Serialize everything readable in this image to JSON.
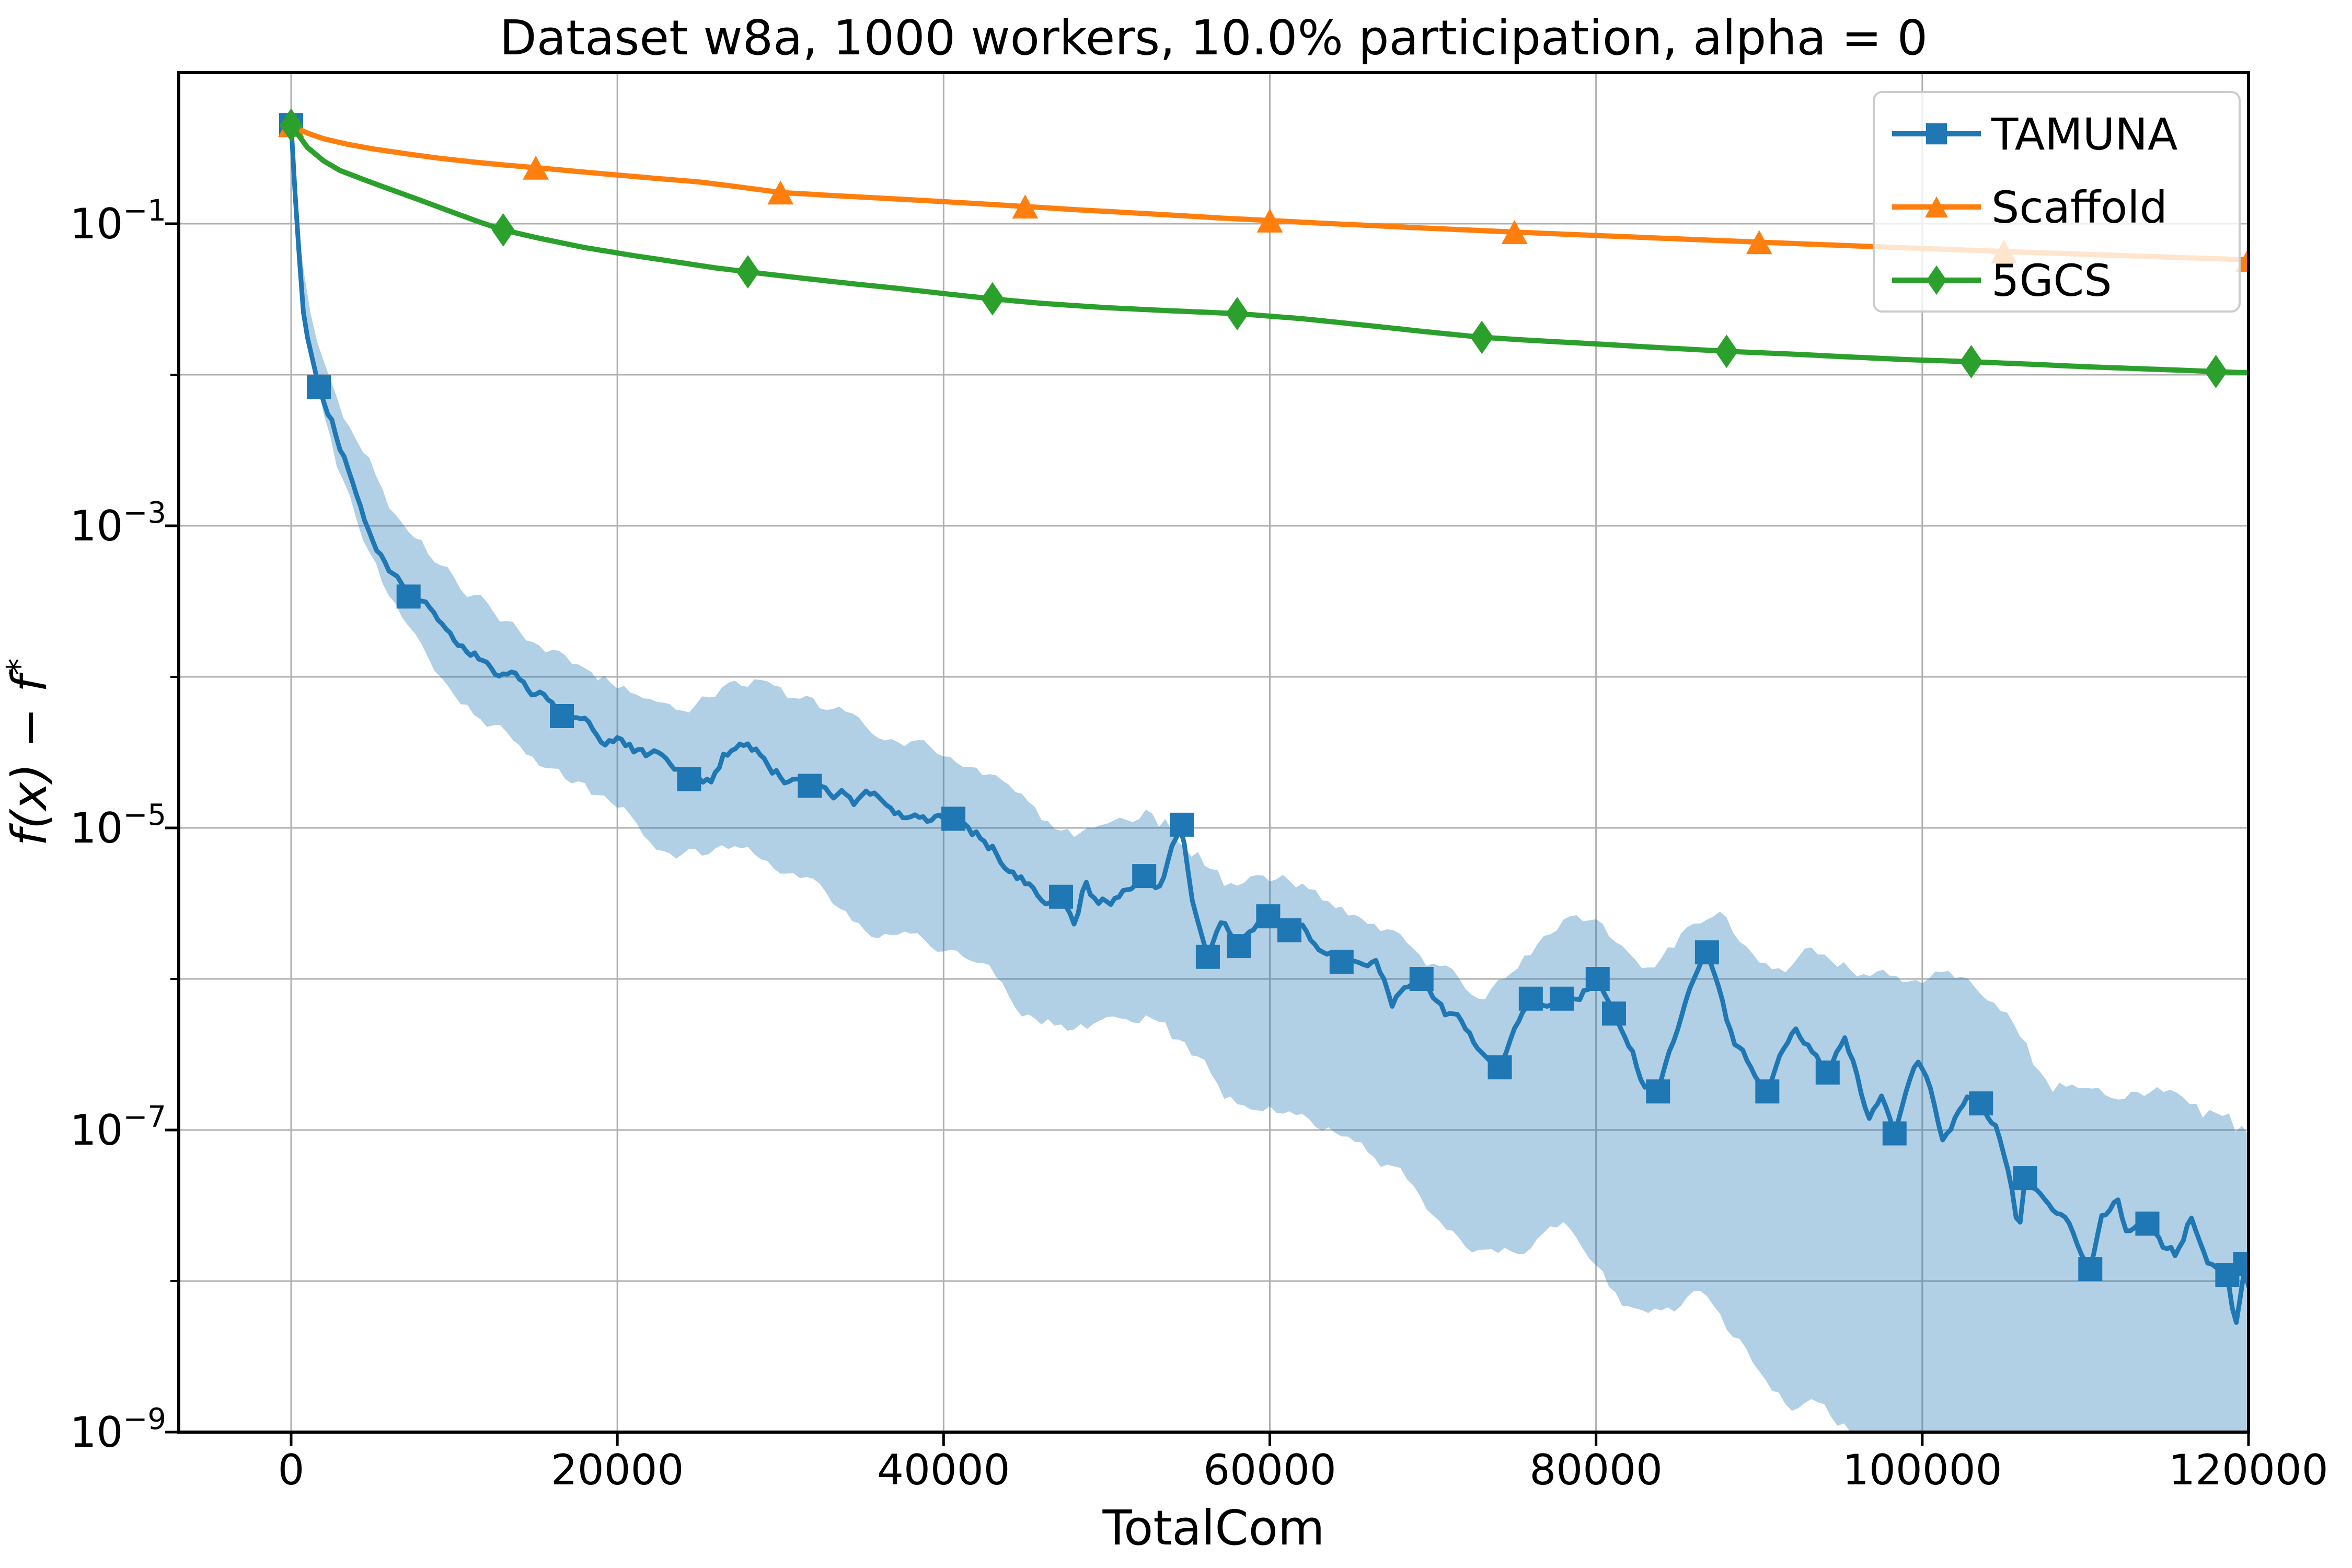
{
  "title": "Dataset w8a, 1000 workers, 10.0% participation, alpha = 0",
  "axes": {
    "xlabel": "TotalCom",
    "ylabel": "f(x) − f*",
    "xticks": [
      0,
      20000,
      40000,
      60000,
      80000,
      100000,
      120000
    ],
    "ytick_exponents_labeled": [
      -1,
      -3,
      -5,
      -7,
      -9
    ],
    "ydecade_exponents": [
      -1,
      -2,
      -3,
      -4,
      -5,
      -6,
      -7,
      -8,
      -9
    ],
    "ylim": [
      1e-09,
      1.0
    ],
    "xlim_right": 120000,
    "grid": true
  },
  "legend": {
    "position": "upper right",
    "entries": [
      {
        "label": "TAMUNA",
        "color": "#1f77b4",
        "marker": "square"
      },
      {
        "label": "Scaffold",
        "color": "#ff7f0e",
        "marker": "triangle"
      },
      {
        "label": "5GCS",
        "color": "#2ca02c",
        "marker": "diamond"
      }
    ]
  },
  "colors": {
    "tamuna": "#1f77b4",
    "scaffold": "#ff7f0e",
    "fgcs": "#2ca02c",
    "band": "#1f77b4",
    "band_opacity": 0.35,
    "grid": "#b0b0b0",
    "spine": "#000000",
    "legend_border": "#cccccc",
    "background": "#ffffff"
  },
  "chart_data": {
    "type": "line",
    "xlabel": "TotalCom",
    "ylabel": "f(x) − f*",
    "yscale": "log",
    "ylim": [
      1e-09,
      1.0
    ],
    "series": [
      {
        "name": "TAMUNA",
        "color": "#1f77b4",
        "marker": "square",
        "noise_seed": 42,
        "markers_x": [
          0,
          1700,
          7200,
          16600,
          24400,
          31800,
          40600,
          47200,
          52300,
          54600,
          56200,
          58100,
          59900,
          61200,
          64400,
          69300,
          74100,
          76000,
          77900,
          80100,
          81100,
          83800,
          86800,
          90500,
          94200,
          98300,
          103600,
          106300,
          110300,
          113800,
          118700,
          119800
        ],
        "markers_y": [
          0.45,
          0.0083,
          0.00034,
          5.5e-05,
          2.1e-05,
          1.9e-05,
          1.15e-05,
          3.5e-06,
          4.8e-06,
          1.05e-05,
          1.4e-06,
          1.65e-06,
          2.6e-06,
          2.1e-06,
          1.3e-06,
          1e-06,
          2.6e-07,
          7.4e-07,
          7.4e-07,
          1e-06,
          5.9e-07,
          1.8e-07,
          1.5e-06,
          1.8e-07,
          2.4e-07,
          9.5e-08,
          1.5e-07,
          4.8e-08,
          1.2e-08,
          2.4e-08,
          1.1e-08,
          1.3e-08
        ],
        "anchors": [
          [
            0,
            0.45
          ],
          [
            350,
            0.1
          ],
          [
            800,
            0.022
          ],
          [
            1700,
            0.0083
          ],
          [
            2800,
            0.0036
          ],
          [
            4200,
            0.0016
          ],
          [
            5600,
            0.0007
          ],
          [
            7200,
            0.00034
          ],
          [
            9000,
            0.00021
          ],
          [
            11000,
            0.00014
          ],
          [
            13500,
            9e-05
          ],
          [
            16600,
            5.5e-05
          ],
          [
            19000,
            4.2e-05
          ],
          [
            21500,
            3.1e-05
          ],
          [
            24400,
            2.1e-05
          ],
          [
            25800,
            2.05e-05
          ],
          [
            26600,
            3.4e-05
          ],
          [
            27600,
            3.6e-05
          ],
          [
            28600,
            3.3e-05
          ],
          [
            29600,
            2.7e-05
          ],
          [
            30700,
            2.2e-05
          ],
          [
            31800,
            1.9e-05
          ],
          [
            33000,
            1.7e-05
          ],
          [
            34500,
            1.5e-05
          ],
          [
            36000,
            1.35e-05
          ],
          [
            37500,
            1.25e-05
          ],
          [
            39000,
            1.2e-05
          ],
          [
            40600,
            1.15e-05
          ],
          [
            41500,
            1e-05
          ],
          [
            43000,
            7.5e-06
          ],
          [
            44500,
            5.8e-06
          ],
          [
            45500,
            4.2e-06
          ],
          [
            46200,
            3.7e-06
          ],
          [
            47200,
            3.5e-06
          ],
          [
            48100,
            2.4e-06
          ],
          [
            48700,
            4.6e-06
          ],
          [
            49600,
            3.1e-06
          ],
          [
            50500,
            3.6e-06
          ],
          [
            51300,
            4.2e-06
          ],
          [
            52300,
            4.8e-06
          ],
          [
            53200,
            4.2e-06
          ],
          [
            53900,
            7.5e-06
          ],
          [
            54600,
            1.05e-05
          ],
          [
            55300,
            2.7e-06
          ],
          [
            56200,
            1.4e-06
          ],
          [
            57100,
            2.4e-06
          ],
          [
            58100,
            1.65e-06
          ],
          [
            59000,
            2.2e-06
          ],
          [
            59900,
            2.6e-06
          ],
          [
            60500,
            2.4e-06
          ],
          [
            61200,
            2.1e-06
          ],
          [
            62100,
            2.3e-06
          ],
          [
            63200,
            1.8e-06
          ],
          [
            64400,
            1.3e-06
          ],
          [
            65500,
            1.25e-06
          ],
          [
            66500,
            1.15e-06
          ],
          [
            67500,
            7e-07
          ],
          [
            68300,
            8.5e-07
          ],
          [
            69300,
            1e-06
          ],
          [
            70500,
            6.5e-07
          ],
          [
            71800,
            4.5e-07
          ],
          [
            73000,
            3.2e-07
          ],
          [
            74100,
            2.6e-07
          ],
          [
            75000,
            4.5e-07
          ],
          [
            76000,
            7.4e-07
          ],
          [
            77000,
            6.8e-07
          ],
          [
            77900,
            7.4e-07
          ],
          [
            78800,
            8.5e-07
          ],
          [
            80100,
            1e-06
          ],
          [
            80700,
            7.5e-07
          ],
          [
            81100,
            5.9e-07
          ],
          [
            82000,
            3.6e-07
          ],
          [
            82800,
            2.2e-07
          ],
          [
            83800,
            1.8e-07
          ],
          [
            84600,
            4e-07
          ],
          [
            85500,
            9e-07
          ],
          [
            86300,
            1.3e-06
          ],
          [
            86800,
            1.5e-06
          ],
          [
            87500,
            9e-07
          ],
          [
            88300,
            4.5e-07
          ],
          [
            89300,
            2.6e-07
          ],
          [
            90500,
            1.8e-07
          ],
          [
            91300,
            3.2e-07
          ],
          [
            92200,
            4e-07
          ],
          [
            93000,
            3e-07
          ],
          [
            94200,
            2.4e-07
          ],
          [
            95200,
            3.5e-07
          ],
          [
            96000,
            2.2e-07
          ],
          [
            96800,
            1.1e-07
          ],
          [
            97500,
            1.6e-07
          ],
          [
            98300,
            9.5e-08
          ],
          [
            99000,
            1.6e-07
          ],
          [
            99800,
            2.4e-07
          ],
          [
            100500,
            1.8e-07
          ],
          [
            101300,
            9e-08
          ],
          [
            102000,
            1.3e-07
          ],
          [
            102800,
            1.8e-07
          ],
          [
            103600,
            1.5e-07
          ],
          [
            104500,
            1.1e-07
          ],
          [
            105300,
            6e-08
          ],
          [
            105900,
            2e-08
          ],
          [
            106300,
            4.8e-08
          ],
          [
            107200,
            3.8e-08
          ],
          [
            108200,
            2.6e-08
          ],
          [
            109200,
            2e-08
          ],
          [
            110300,
            1.2e-08
          ],
          [
            111000,
            2.6e-08
          ],
          [
            111900,
            3.2e-08
          ],
          [
            112600,
            1.9e-08
          ],
          [
            113800,
            2.4e-08
          ],
          [
            114800,
            1.5e-08
          ],
          [
            115600,
            1.4e-08
          ],
          [
            116500,
            2.6e-08
          ],
          [
            117500,
            1.3e-08
          ],
          [
            118700,
            1.1e-08
          ],
          [
            119200,
            4.5e-09
          ],
          [
            119800,
            1.3e-08
          ],
          [
            120000,
            9e-09
          ]
        ],
        "band": {
          "x": [
            0,
            2000,
            5000,
            10000,
            15000,
            20000,
            25000,
            30000,
            35000,
            40000,
            45000,
            50000,
            55000,
            60000,
            65000,
            70000,
            75000,
            80000,
            85000,
            90000,
            95000,
            100000,
            105000,
            110000,
            115000,
            120000
          ],
          "upper_dec": [
            0.04,
            0.12,
            0.3,
            0.35,
            0.4,
            0.42,
            0.45,
            0.45,
            0.48,
            0.48,
            0.42,
            0.35,
            0.3,
            0.22,
            0.25,
            0.3,
            0.4,
            0.5,
            0.55,
            0.65,
            0.7,
            0.75,
            0.8,
            0.85,
            0.95,
            1.0
          ],
          "lower_dec": [
            0.04,
            0.15,
            0.25,
            0.32,
            0.4,
            0.5,
            0.6,
            0.7,
            0.8,
            0.9,
            0.92,
            0.9,
            1.0,
            1.1,
            1.2,
            1.35,
            1.5,
            1.7,
            1.9,
            2.1,
            2.3,
            2.5,
            2.7,
            2.8,
            2.9,
            3.0
          ]
        }
      },
      {
        "name": "Scaffold",
        "color": "#ff7f0e",
        "marker": "triangle",
        "markers_x": [
          0,
          15000,
          30000,
          45000,
          60000,
          75000,
          90000,
          105000,
          120000
        ],
        "markers_y": [
          0.45,
          0.235,
          0.161,
          0.13,
          0.105,
          0.088,
          0.0755,
          0.0655,
          0.0577
        ],
        "anchors": [
          [
            0,
            0.45
          ],
          [
            800,
            0.405
          ],
          [
            2000,
            0.365
          ],
          [
            3500,
            0.335
          ],
          [
            5000,
            0.313
          ],
          [
            7000,
            0.291
          ],
          [
            9000,
            0.272
          ],
          [
            11000,
            0.257
          ],
          [
            13000,
            0.245
          ],
          [
            15000,
            0.235
          ],
          [
            17500,
            0.222
          ],
          [
            20000,
            0.21
          ],
          [
            22500,
            0.199
          ],
          [
            25000,
            0.189
          ],
          [
            27500,
            0.175
          ],
          [
            30000,
            0.161
          ],
          [
            33000,
            0.154
          ],
          [
            36000,
            0.148
          ],
          [
            39000,
            0.142
          ],
          [
            42000,
            0.136
          ],
          [
            45000,
            0.13
          ],
          [
            48000,
            0.124
          ],
          [
            51000,
            0.119
          ],
          [
            54000,
            0.114
          ],
          [
            57000,
            0.109
          ],
          [
            60000,
            0.105
          ],
          [
            63000,
            0.101
          ],
          [
            66000,
            0.0975
          ],
          [
            69000,
            0.094
          ],
          [
            72000,
            0.091
          ],
          [
            75000,
            0.088
          ],
          [
            78000,
            0.0853
          ],
          [
            81000,
            0.0827
          ],
          [
            84000,
            0.0802
          ],
          [
            87000,
            0.0778
          ],
          [
            90000,
            0.0755
          ],
          [
            93000,
            0.0733
          ],
          [
            96000,
            0.0712
          ],
          [
            99000,
            0.0692
          ],
          [
            102000,
            0.0673
          ],
          [
            105000,
            0.0655
          ],
          [
            108000,
            0.0638
          ],
          [
            111000,
            0.0622
          ],
          [
            114000,
            0.0606
          ],
          [
            117000,
            0.0591
          ],
          [
            120000,
            0.0577
          ]
        ]
      },
      {
        "name": "5GCS",
        "color": "#2ca02c",
        "marker": "diamond",
        "markers_x": [
          0,
          13000,
          28000,
          43000,
          58000,
          73000,
          88000,
          103000,
          118000
        ],
        "markers_y": [
          0.45,
          0.091,
          0.048,
          0.0318,
          0.0254,
          0.0177,
          0.0143,
          0.0122,
          0.0105
        ],
        "anchors": [
          [
            0,
            0.45
          ],
          [
            1000,
            0.32
          ],
          [
            2000,
            0.26
          ],
          [
            3000,
            0.225
          ],
          [
            4500,
            0.195
          ],
          [
            6000,
            0.17
          ],
          [
            8000,
            0.142
          ],
          [
            10000,
            0.118
          ],
          [
            11500,
            0.103
          ],
          [
            13000,
            0.091
          ],
          [
            15000,
            0.081
          ],
          [
            18000,
            0.0695
          ],
          [
            21000,
            0.0615
          ],
          [
            24000,
            0.055
          ],
          [
            26000,
            0.051
          ],
          [
            28000,
            0.048
          ],
          [
            31000,
            0.044
          ],
          [
            34000,
            0.0405
          ],
          [
            37000,
            0.0375
          ],
          [
            40000,
            0.0345
          ],
          [
            43000,
            0.0318
          ],
          [
            46000,
            0.0297
          ],
          [
            50000,
            0.0278
          ],
          [
            54000,
            0.0265
          ],
          [
            58000,
            0.0254
          ],
          [
            62000,
            0.0235
          ],
          [
            66000,
            0.0212
          ],
          [
            69500,
            0.0193
          ],
          [
            73000,
            0.0177
          ],
          [
            76000,
            0.0169
          ],
          [
            80000,
            0.016
          ],
          [
            84000,
            0.0151
          ],
          [
            88000,
            0.0143
          ],
          [
            92000,
            0.0137
          ],
          [
            95000,
            0.0132
          ],
          [
            99000,
            0.0126
          ],
          [
            103000,
            0.0122
          ],
          [
            107000,
            0.0117
          ],
          [
            110000,
            0.0113
          ],
          [
            114000,
            0.0109
          ],
          [
            118000,
            0.0105
          ],
          [
            120000,
            0.0103
          ]
        ]
      }
    ]
  }
}
